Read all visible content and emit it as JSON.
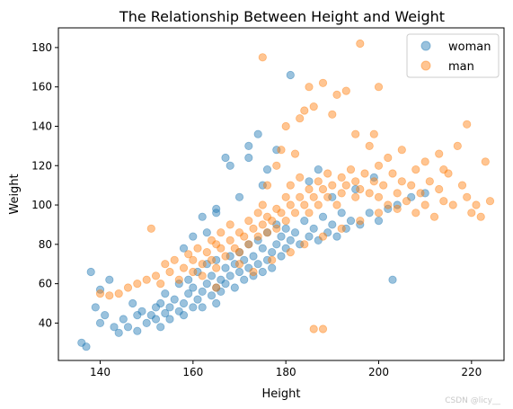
{
  "chart_data": {
    "type": "scatter",
    "title": "The Relationship Between Height and Weight",
    "xlabel": "Height",
    "ylabel": "Weight",
    "xlim": [
      131,
      227
    ],
    "ylim": [
      21,
      190
    ],
    "xticks": [
      140,
      160,
      180,
      200,
      220
    ],
    "yticks": [
      40,
      60,
      80,
      100,
      120,
      140,
      160,
      180
    ],
    "grid": false,
    "legend_position": "top-right",
    "marker_alpha": 0.45,
    "series": [
      {
        "name": "woman",
        "color": "#1f77b4",
        "points": [
          [
            136,
            30
          ],
          [
            137,
            28
          ],
          [
            138,
            66
          ],
          [
            139,
            48
          ],
          [
            140,
            40
          ],
          [
            140,
            57
          ],
          [
            141,
            44
          ],
          [
            142,
            62
          ],
          [
            143,
            38
          ],
          [
            144,
            35
          ],
          [
            145,
            42
          ],
          [
            146,
            38
          ],
          [
            147,
            50
          ],
          [
            148,
            44
          ],
          [
            148,
            36
          ],
          [
            149,
            46
          ],
          [
            150,
            40
          ],
          [
            151,
            44
          ],
          [
            152,
            48
          ],
          [
            152,
            42
          ],
          [
            153,
            50
          ],
          [
            153,
            38
          ],
          [
            154,
            45
          ],
          [
            154,
            55
          ],
          [
            155,
            42
          ],
          [
            155,
            48
          ],
          [
            156,
            52
          ],
          [
            157,
            46
          ],
          [
            157,
            60
          ],
          [
            158,
            50
          ],
          [
            158,
            44
          ],
          [
            159,
            55
          ],
          [
            159,
            62
          ],
          [
            160,
            48
          ],
          [
            160,
            58
          ],
          [
            161,
            52
          ],
          [
            161,
            66
          ],
          [
            162,
            56
          ],
          [
            162,
            48
          ],
          [
            163,
            60
          ],
          [
            163,
            70
          ],
          [
            164,
            54
          ],
          [
            164,
            64
          ],
          [
            165,
            58
          ],
          [
            165,
            50
          ],
          [
            165,
            72
          ],
          [
            166,
            62
          ],
          [
            166,
            56
          ],
          [
            167,
            68
          ],
          [
            167,
            60
          ],
          [
            168,
            64
          ],
          [
            168,
            74
          ],
          [
            169,
            58
          ],
          [
            169,
            70
          ],
          [
            170,
            66
          ],
          [
            170,
            76
          ],
          [
            171,
            62
          ],
          [
            171,
            72
          ],
          [
            172,
            68
          ],
          [
            172,
            80
          ],
          [
            173,
            64
          ],
          [
            173,
            74
          ],
          [
            174,
            70
          ],
          [
            174,
            82
          ],
          [
            175,
            66
          ],
          [
            175,
            78
          ],
          [
            176,
            72
          ],
          [
            176,
            86
          ],
          [
            177,
            76
          ],
          [
            177,
            68
          ],
          [
            178,
            80
          ],
          [
            178,
            90
          ],
          [
            179,
            74
          ],
          [
            179,
            84
          ],
          [
            180,
            78
          ],
          [
            180,
            88
          ],
          [
            181,
            82
          ],
          [
            182,
            86
          ],
          [
            183,
            80
          ],
          [
            184,
            92
          ],
          [
            185,
            84
          ],
          [
            186,
            88
          ],
          [
            187,
            82
          ],
          [
            188,
            94
          ],
          [
            189,
            86
          ],
          [
            190,
            90
          ],
          [
            191,
            84
          ],
          [
            192,
            96
          ],
          [
            193,
            88
          ],
          [
            194,
            92
          ],
          [
            196,
            90
          ],
          [
            198,
            96
          ],
          [
            200,
            92
          ],
          [
            202,
            98
          ],
          [
            203,
            62
          ],
          [
            204,
            100
          ],
          [
            207,
            104
          ],
          [
            210,
            106
          ],
          [
            167,
            124
          ],
          [
            168,
            120
          ],
          [
            172,
            130
          ],
          [
            174,
            136
          ],
          [
            176,
            118
          ],
          [
            178,
            128
          ],
          [
            181,
            166
          ],
          [
            172,
            124
          ],
          [
            165,
            98
          ],
          [
            163,
            86
          ],
          [
            160,
            84
          ],
          [
            170,
            104
          ],
          [
            175,
            110
          ],
          [
            185,
            112
          ],
          [
            190,
            104
          ],
          [
            195,
            108
          ],
          [
            199,
            114
          ],
          [
            187,
            118
          ],
          [
            165,
            96
          ],
          [
            158,
            78
          ],
          [
            162,
            94
          ]
        ]
      },
      {
        "name": "man",
        "color": "#ff7f0e",
        "points": [
          [
            140,
            55
          ],
          [
            142,
            54
          ],
          [
            144,
            55
          ],
          [
            146,
            58
          ],
          [
            148,
            60
          ],
          [
            150,
            62
          ],
          [
            151,
            88
          ],
          [
            152,
            64
          ],
          [
            153,
            60
          ],
          [
            154,
            70
          ],
          [
            155,
            66
          ],
          [
            156,
            72
          ],
          [
            157,
            62
          ],
          [
            158,
            68
          ],
          [
            159,
            75
          ],
          [
            160,
            66
          ],
          [
            160,
            72
          ],
          [
            161,
            78
          ],
          [
            162,
            70
          ],
          [
            162,
            64
          ],
          [
            163,
            76
          ],
          [
            164,
            82
          ],
          [
            164,
            72
          ],
          [
            165,
            80
          ],
          [
            165,
            68
          ],
          [
            166,
            78
          ],
          [
            166,
            86
          ],
          [
            167,
            74
          ],
          [
            168,
            82
          ],
          [
            168,
            90
          ],
          [
            169,
            78
          ],
          [
            170,
            86
          ],
          [
            170,
            76
          ],
          [
            171,
            84
          ],
          [
            172,
            92
          ],
          [
            172,
            80
          ],
          [
            173,
            88
          ],
          [
            174,
            96
          ],
          [
            174,
            84
          ],
          [
            175,
            90
          ],
          [
            175,
            100
          ],
          [
            176,
            86
          ],
          [
            176,
            94
          ],
          [
            177,
            92
          ],
          [
            178,
            98
          ],
          [
            178,
            88
          ],
          [
            179,
            96
          ],
          [
            180,
            104
          ],
          [
            180,
            92
          ],
          [
            181,
            100
          ],
          [
            181,
            110
          ],
          [
            182,
            96
          ],
          [
            183,
            104
          ],
          [
            183,
            114
          ],
          [
            184,
            100
          ],
          [
            185,
            108
          ],
          [
            185,
            96
          ],
          [
            186,
            104
          ],
          [
            187,
            112
          ],
          [
            187,
            100
          ],
          [
            188,
            108
          ],
          [
            189,
            116
          ],
          [
            189,
            104
          ],
          [
            190,
            110
          ],
          [
            191,
            100
          ],
          [
            192,
            114
          ],
          [
            192,
            106
          ],
          [
            193,
            110
          ],
          [
            194,
            118
          ],
          [
            195,
            104
          ],
          [
            195,
            112
          ],
          [
            196,
            108
          ],
          [
            197,
            116
          ],
          [
            198,
            106
          ],
          [
            199,
            112
          ],
          [
            200,
            104
          ],
          [
            200,
            120
          ],
          [
            201,
            110
          ],
          [
            202,
            100
          ],
          [
            203,
            116
          ],
          [
            204,
            106
          ],
          [
            205,
            112
          ],
          [
            206,
            102
          ],
          [
            207,
            110
          ],
          [
            208,
            96
          ],
          [
            209,
            106
          ],
          [
            210,
            100
          ],
          [
            211,
            112
          ],
          [
            212,
            94
          ],
          [
            213,
            108
          ],
          [
            214,
            102
          ],
          [
            215,
            116
          ],
          [
            216,
            100
          ],
          [
            218,
            110
          ],
          [
            219,
            104
          ],
          [
            220,
            96
          ],
          [
            221,
            100
          ],
          [
            222,
            94
          ],
          [
            223,
            122
          ],
          [
            224,
            102
          ],
          [
            175,
            175
          ],
          [
            196,
            182
          ],
          [
            185,
            160
          ],
          [
            188,
            162
          ],
          [
            191,
            156
          ],
          [
            193,
            158
          ],
          [
            200,
            160
          ],
          [
            199,
            136
          ],
          [
            202,
            124
          ],
          [
            183,
            144
          ],
          [
            186,
            150
          ],
          [
            180,
            140
          ],
          [
            184,
            148
          ],
          [
            190,
            146
          ],
          [
            195,
            136
          ],
          [
            198,
            130
          ],
          [
            205,
            128
          ],
          [
            210,
            122
          ],
          [
            213,
            126
          ],
          [
            217,
            130
          ],
          [
            219,
            141
          ],
          [
            214,
            118
          ],
          [
            208,
            118
          ],
          [
            188,
            37
          ],
          [
            186,
            37
          ],
          [
            176,
            110
          ],
          [
            178,
            120
          ],
          [
            179,
            128
          ],
          [
            182,
            126
          ],
          [
            170,
            70
          ],
          [
            165,
            58
          ],
          [
            173,
            66
          ],
          [
            177,
            72
          ],
          [
            181,
            76
          ],
          [
            184,
            80
          ],
          [
            188,
            84
          ],
          [
            192,
            88
          ],
          [
            196,
            92
          ],
          [
            200,
            96
          ],
          [
            204,
            98
          ]
        ]
      }
    ]
  },
  "watermark": "CSDN @licy__"
}
